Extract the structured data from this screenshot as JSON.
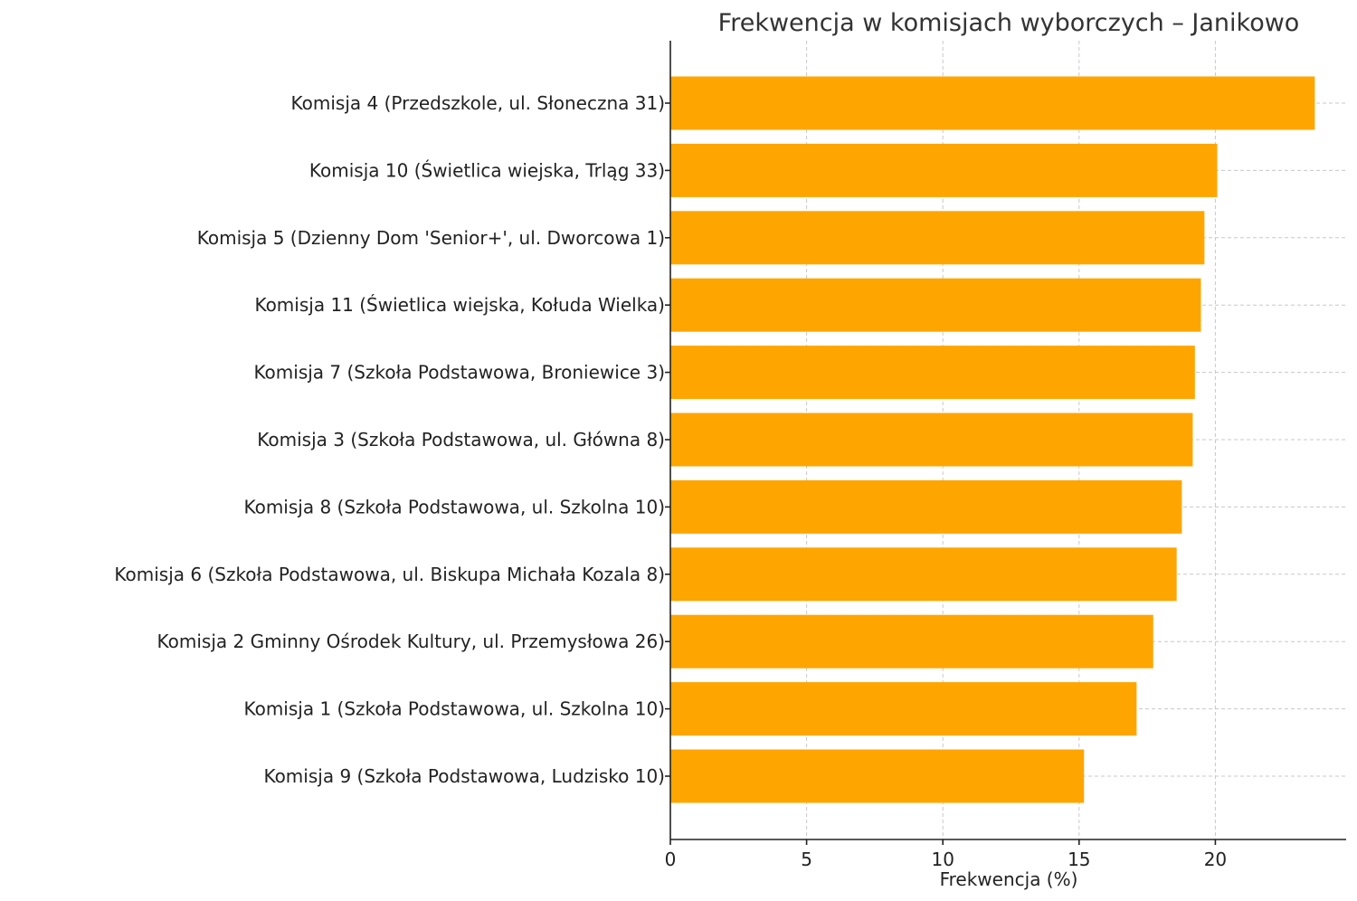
{
  "chart_data": {
    "type": "bar",
    "orientation": "horizontal",
    "title": "Frekwencja w komisjach wyborczych – Janikowo",
    "xlabel": "Frekwencja (%)",
    "ylabel": "",
    "xlim": [
      0,
      24.8
    ],
    "xticks": [
      0,
      5,
      10,
      15,
      20
    ],
    "grid": true,
    "bar_color": "#FFA500",
    "categories": [
      "Komisja 4 (Przedszkole, ul. Słoneczna 31)",
      "Komisja 10 (Świetlica wiejska, Trląg 33)",
      "Komisja 5 (Dzienny Dom 'Senior+', ul. Dworcowa 1)",
      "Komisja 11 (Świetlica wiejska, Kołuda Wielka)",
      "Komisja 7 (Szkoła Podstawowa, Broniewice 3)",
      "Komisja 3 (Szkoła Podstawowa, ul. Główna 8)",
      "Komisja 8 (Szkoła Podstawowa, ul. Szkolna 10)",
      "Komisja 6 (Szkoła Podstawowa, ul. Biskupa Michała Kozala 8)",
      "Komisja 2 Gminny Ośrodek Kultury, ul. Przemysłowa 26)",
      "Komisja 1 (Szkoła Podstawowa, ul. Szkolna 10)",
      "Komisja 9 (Szkoła Podstawowa, Ludzisko 10)"
    ],
    "values": [
      23.65,
      20.07,
      19.6,
      19.47,
      19.25,
      19.17,
      18.77,
      18.58,
      17.72,
      17.11,
      15.18
    ]
  }
}
